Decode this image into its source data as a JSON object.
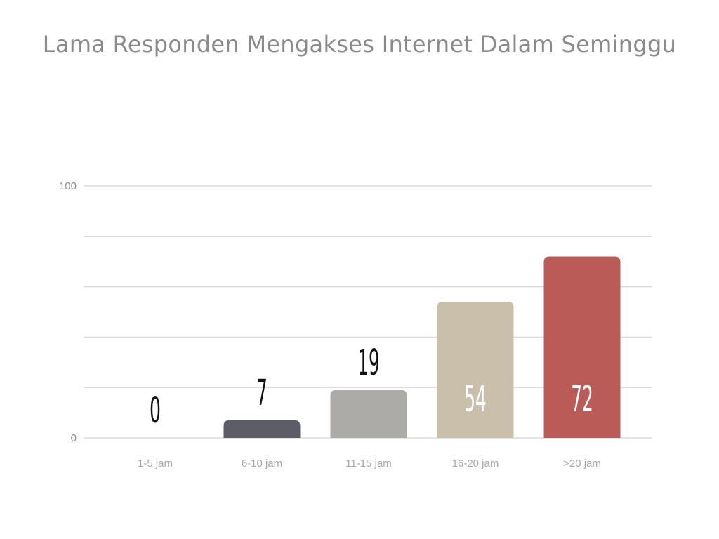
{
  "chart_data": {
    "type": "bar",
    "title": "Lama Responden Mengakses Internet Dalam Seminggu",
    "xlabel": "",
    "ylabel": "",
    "categories": [
      "1-5 jam",
      "6-10 jam",
      "11-15 jam",
      "16-20 jam",
      ">20 jam"
    ],
    "values": [
      0,
      7,
      19,
      54,
      72
    ],
    "value_labels": [
      "0",
      "7",
      "19",
      "54",
      "72"
    ],
    "ylim": [
      0,
      100
    ],
    "y_tick_labels": [
      "0",
      "100"
    ],
    "grid": true,
    "legend": "none",
    "colors": [
      "#5c5d66",
      "#5c5d66",
      "#acaba7",
      "#c9bfab",
      "#bb5b58"
    ]
  }
}
